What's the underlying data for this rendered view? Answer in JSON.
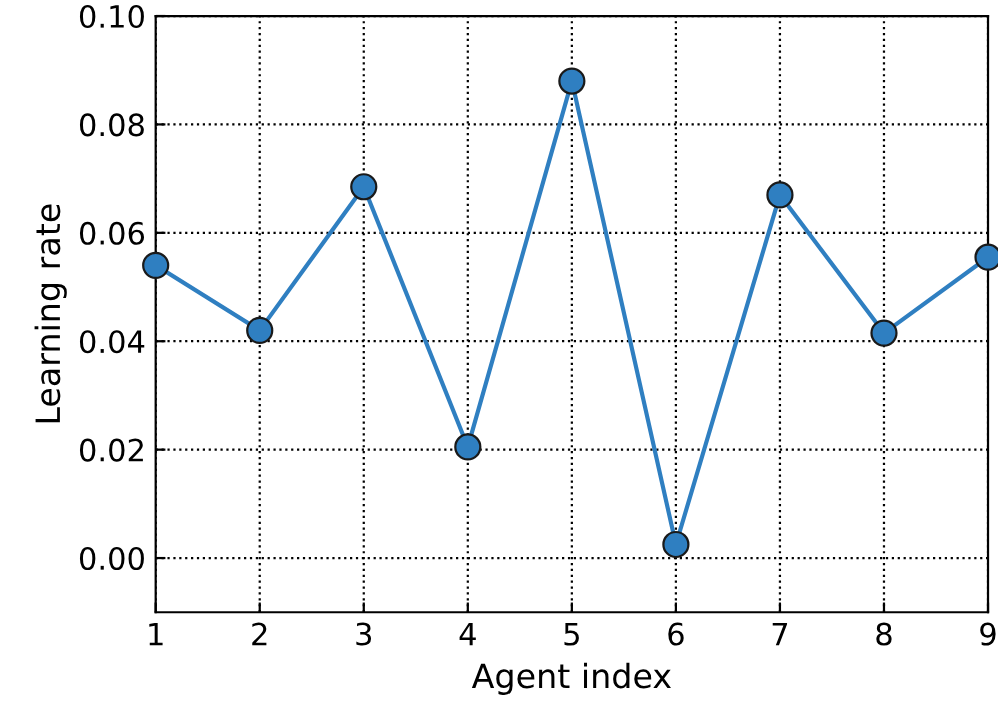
{
  "chart_data": {
    "type": "line",
    "xlabel": "Agent index",
    "ylabel": "Learning rate",
    "x": [
      1,
      2,
      3,
      4,
      5,
      6,
      7,
      8,
      9
    ],
    "series": [
      {
        "color": "#2f7fc1",
        "values": [
          0.054,
          0.042,
          0.0685,
          0.0205,
          0.088,
          0.0025,
          0.067,
          0.0415,
          0.0555
        ]
      }
    ],
    "xlim": [
      1,
      9
    ],
    "xticks": [
      1,
      2,
      3,
      4,
      5,
      6,
      7,
      8,
      9
    ],
    "ylim": [
      -0.01,
      0.1
    ],
    "yticks": [
      {
        "value": 0,
        "label": "0.00"
      },
      {
        "value": 0.02,
        "label": "0.02"
      },
      {
        "value": 0.04,
        "label": "0.04"
      },
      {
        "value": 0.06,
        "label": "0.06"
      },
      {
        "value": 0.08,
        "label": "0.08"
      },
      {
        "value": 0.1,
        "label": "0.10"
      }
    ],
    "grid": true,
    "marker": "circle",
    "line_style": "solid",
    "legend": false
  }
}
